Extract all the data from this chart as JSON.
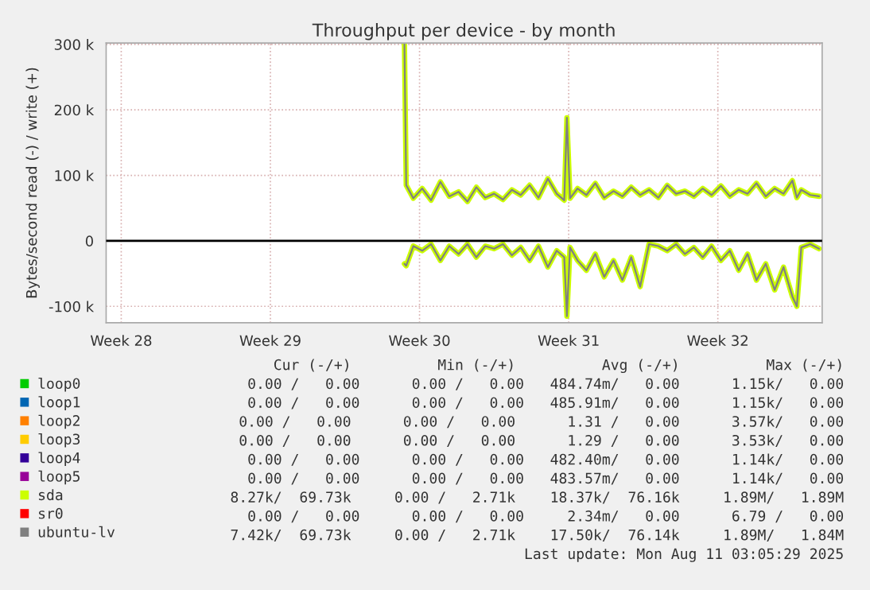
{
  "chart_data": {
    "type": "line",
    "title": "Throughput per device - by month",
    "ylabel": "Bytes/second read (-) / write (+)",
    "x": [
      "2025-07-20T07:00",
      "2025-07-20T09:00",
      "2025-07-20T17:00",
      "2025-07-21T03:00",
      "2025-07-21T13:00",
      "2025-07-21T23:30",
      "2025-07-22T09:30",
      "2025-07-22T20:00",
      "2025-07-23T06:00",
      "2025-07-23T16:00",
      "2025-07-24T02:00",
      "2025-07-24T12:00",
      "2025-07-24T22:00",
      "2025-07-25T08:00",
      "2025-07-25T18:00",
      "2025-07-26T04:00",
      "2025-07-26T14:00",
      "2025-07-27T00:30",
      "2025-07-27T10:30",
      "2025-07-27T19:00",
      "2025-07-27T22:00",
      "2025-07-28T01:30",
      "2025-07-28T10:00",
      "2025-07-28T20:00",
      "2025-07-29T06:00",
      "2025-07-29T16:00",
      "2025-07-30T02:30",
      "2025-07-30T12:30",
      "2025-07-30T22:30",
      "2025-07-31T08:30",
      "2025-07-31T18:30",
      "2025-08-01T05:00",
      "2025-08-01T15:00",
      "2025-08-02T01:00",
      "2025-08-02T11:00",
      "2025-08-02T21:00",
      "2025-08-03T07:00",
      "2025-08-03T17:00",
      "2025-08-04T03:30",
      "2025-08-04T13:30",
      "2025-08-04T23:30",
      "2025-08-05T09:30",
      "2025-08-05T19:30",
      "2025-08-06T06:00",
      "2025-08-06T16:00",
      "2025-08-07T02:00",
      "2025-08-07T12:00",
      "2025-08-07T17:00",
      "2025-08-07T22:00",
      "2025-08-08T08:00",
      "2025-08-08T18:00"
    ],
    "series": [
      {
        "name": "loop0",
        "color": "#00cc00",
        "values": [
          null,
          null,
          null,
          null,
          null,
          null,
          null,
          null,
          null,
          null,
          null,
          null,
          null,
          null,
          null,
          null,
          null,
          null,
          null,
          null,
          null,
          null,
          null,
          null,
          null,
          null,
          null,
          null,
          null,
          null,
          null,
          null,
          null,
          null,
          null,
          null,
          null,
          null,
          null,
          null,
          null,
          null,
          null,
          null,
          null,
          null,
          null,
          null,
          null,
          null,
          null
        ]
      },
      {
        "name": "loop1",
        "color": "#0066b3",
        "values": [
          null,
          null,
          null,
          null,
          null,
          null,
          null,
          null,
          null,
          null,
          null,
          null,
          null,
          null,
          null,
          null,
          null,
          null,
          null,
          null,
          null,
          null,
          null,
          null,
          null,
          null,
          null,
          null,
          null,
          null,
          null,
          null,
          null,
          null,
          null,
          null,
          null,
          null,
          null,
          null,
          null,
          null,
          null,
          null,
          null,
          null,
          null,
          null,
          null,
          null,
          null
        ]
      },
      {
        "name": "loop2",
        "color": "#ff8000",
        "values": [
          null,
          null,
          null,
          null,
          null,
          null,
          null,
          null,
          null,
          null,
          null,
          null,
          null,
          null,
          null,
          null,
          null,
          null,
          null,
          null,
          null,
          null,
          null,
          null,
          null,
          null,
          null,
          null,
          null,
          null,
          null,
          null,
          null,
          null,
          null,
          null,
          null,
          null,
          null,
          null,
          null,
          null,
          null,
          null,
          null,
          null,
          null,
          null,
          null,
          null,
          null
        ]
      },
      {
        "name": "loop3",
        "color": "#ffcc00",
        "values": [
          null,
          null,
          null,
          null,
          null,
          null,
          null,
          null,
          null,
          null,
          null,
          null,
          null,
          null,
          null,
          null,
          null,
          null,
          null,
          null,
          null,
          null,
          null,
          null,
          null,
          null,
          null,
          null,
          null,
          null,
          null,
          null,
          null,
          null,
          null,
          null,
          null,
          null,
          null,
          null,
          null,
          null,
          null,
          null,
          null,
          null,
          null,
          null,
          null,
          null,
          null
        ]
      },
      {
        "name": "loop4",
        "color": "#330099",
        "values": [
          null,
          null,
          null,
          null,
          null,
          null,
          null,
          null,
          null,
          null,
          null,
          null,
          null,
          null,
          null,
          null,
          null,
          null,
          null,
          null,
          null,
          null,
          null,
          null,
          null,
          null,
          null,
          null,
          null,
          null,
          null,
          null,
          null,
          null,
          null,
          null,
          null,
          null,
          null,
          null,
          null,
          null,
          null,
          null,
          null,
          null,
          null,
          null,
          null,
          null,
          null
        ]
      },
      {
        "name": "loop5",
        "color": "#990099",
        "values": [
          null,
          null,
          null,
          null,
          null,
          null,
          null,
          null,
          null,
          null,
          null,
          null,
          null,
          null,
          null,
          null,
          null,
          null,
          null,
          null,
          null,
          null,
          null,
          null,
          null,
          null,
          null,
          null,
          null,
          null,
          null,
          null,
          null,
          null,
          null,
          null,
          null,
          null,
          null,
          null,
          null,
          null,
          null,
          null,
          null,
          null,
          null,
          null,
          null,
          null,
          null
        ]
      },
      {
        "name": "sda",
        "color": "#ccff00",
        "values": [
          300000,
          85000,
          65000,
          80000,
          62000,
          90000,
          68000,
          75000,
          60000,
          82000,
          66000,
          72000,
          63000,
          78000,
          70000,
          85000,
          66000,
          95000,
          72000,
          62000,
          188000,
          65000,
          80000,
          70000,
          88000,
          66000,
          76000,
          68000,
          82000,
          70000,
          78000,
          66000,
          85000,
          72000,
          76000,
          68000,
          80000,
          70000,
          84000,
          68000,
          78000,
          72000,
          88000,
          68000,
          80000,
          72000,
          92000,
          66000,
          78000,
          70000,
          68000
        ]
      },
      {
        "name": "sr0",
        "color": "#ff0000",
        "values": [
          null,
          null,
          null,
          null,
          null,
          null,
          null,
          null,
          null,
          null,
          null,
          null,
          null,
          null,
          null,
          null,
          null,
          null,
          null,
          null,
          null,
          null,
          null,
          null,
          null,
          null,
          null,
          null,
          null,
          null,
          null,
          null,
          null,
          null,
          null,
          null,
          null,
          null,
          null,
          null,
          null,
          null,
          null,
          null,
          null,
          null,
          null,
          null,
          null,
          null,
          null
        ]
      },
      {
        "name": "ubuntu-lv",
        "color": "#808080",
        "values": [
          300000,
          85000,
          65000,
          80000,
          62000,
          90000,
          68000,
          75000,
          60000,
          82000,
          66000,
          72000,
          63000,
          78000,
          70000,
          85000,
          66000,
          95000,
          72000,
          62000,
          188000,
          65000,
          80000,
          70000,
          88000,
          66000,
          76000,
          68000,
          82000,
          70000,
          78000,
          66000,
          85000,
          72000,
          76000,
          68000,
          80000,
          70000,
          84000,
          68000,
          78000,
          72000,
          88000,
          68000,
          80000,
          72000,
          92000,
          66000,
          78000,
          70000,
          68000
        ]
      },
      {
        "color": "#ccff00",
        "values": [
          -35000,
          -38000,
          -8000,
          -15000,
          -5000,
          -30000,
          -8000,
          -20000,
          -5000,
          -25000,
          -8000,
          -12000,
          -5000,
          -22000,
          -10000,
          -30000,
          -8000,
          -40000,
          -15000,
          -25000,
          -115000,
          -10000,
          -30000,
          -45000,
          -20000,
          -55000,
          -30000,
          -60000,
          -25000,
          -70000,
          -5000,
          -8000,
          -15000,
          -5000,
          -20000,
          -10000,
          -25000,
          -8000,
          -30000,
          -15000,
          -45000,
          -20000,
          -60000,
          -35000,
          -75000,
          -40000,
          -85000,
          -100000,
          -10000,
          -5000,
          -12000
        ]
      },
      {
        "color": "#808080",
        "values": [
          -35000,
          -38000,
          -8000,
          -15000,
          -5000,
          -30000,
          -8000,
          -20000,
          -5000,
          -25000,
          -8000,
          -12000,
          -5000,
          -22000,
          -10000,
          -30000,
          -8000,
          -40000,
          -15000,
          -25000,
          -115000,
          -10000,
          -30000,
          -45000,
          -20000,
          -55000,
          -30000,
          -60000,
          -25000,
          -70000,
          -5000,
          -8000,
          -15000,
          -5000,
          -20000,
          -10000,
          -25000,
          -8000,
          -30000,
          -15000,
          -45000,
          -20000,
          -60000,
          -35000,
          -75000,
          -40000,
          -85000,
          -100000,
          -10000,
          -5000,
          -12000
        ]
      }
    ],
    "xlim": [
      "2025-07-06T07:00",
      "2025-08-08T21:30"
    ],
    "xticks": [
      {
        "value": "2025-07-07",
        "label": "Week 28"
      },
      {
        "value": "2025-07-14",
        "label": "Week 29"
      },
      {
        "value": "2025-07-21",
        "label": "Week 30"
      },
      {
        "value": "2025-07-28",
        "label": "Week 31"
      },
      {
        "value": "2025-08-04",
        "label": "Week 32"
      }
    ],
    "ylim": [
      -125000,
      302000
    ],
    "yticks": [
      {
        "value": -100000,
        "label": "-100 k"
      },
      0,
      {
        "value": 100000,
        "label": "100 k"
      },
      {
        "value": 200000,
        "label": "200 k"
      },
      {
        "value": 300000,
        "label": "300 k"
      }
    ],
    "ref_lines": [
      {
        "axis": "y",
        "value": 0,
        "color": "#000000"
      }
    ],
    "grid": true,
    "legend": "bottom left",
    "annotations": [
      "Cur (-/+)          Min (-/+)          Avg (-/+)          Max (-/+)",
      "0.00 /   0.00      0.00 /   0.00   484.74m/   0.00      1.15k/   0.00",
      "0.00 /   0.00      0.00 /   0.00   485.91m/   0.00      1.15k/   0.00",
      "0.00 /   0.00      0.00 /   0.00      1.31 /   0.00      3.57k/   0.00",
      "0.00 /   0.00      0.00 /   0.00      1.29 /   0.00      3.53k/   0.00",
      "0.00 /   0.00      0.00 /   0.00   482.40m/   0.00      1.14k/   0.00",
      "0.00 /   0.00      0.00 /   0.00   483.57m/   0.00      1.14k/   0.00",
      "8.27k/  69.73k     0.00 /   2.71k    18.37k/  76.16k     1.89M/   1.89M",
      "0.00 /   0.00      0.00 /   0.00     2.34m/   0.00      6.79 /   0.00",
      "7.42k/  69.73k     0.00 /   2.71k    17.50k/  76.14k     1.89M/   1.84M",
      "Last update: Mon Aug 11 03:05:29 2025"
    ]
  }
}
